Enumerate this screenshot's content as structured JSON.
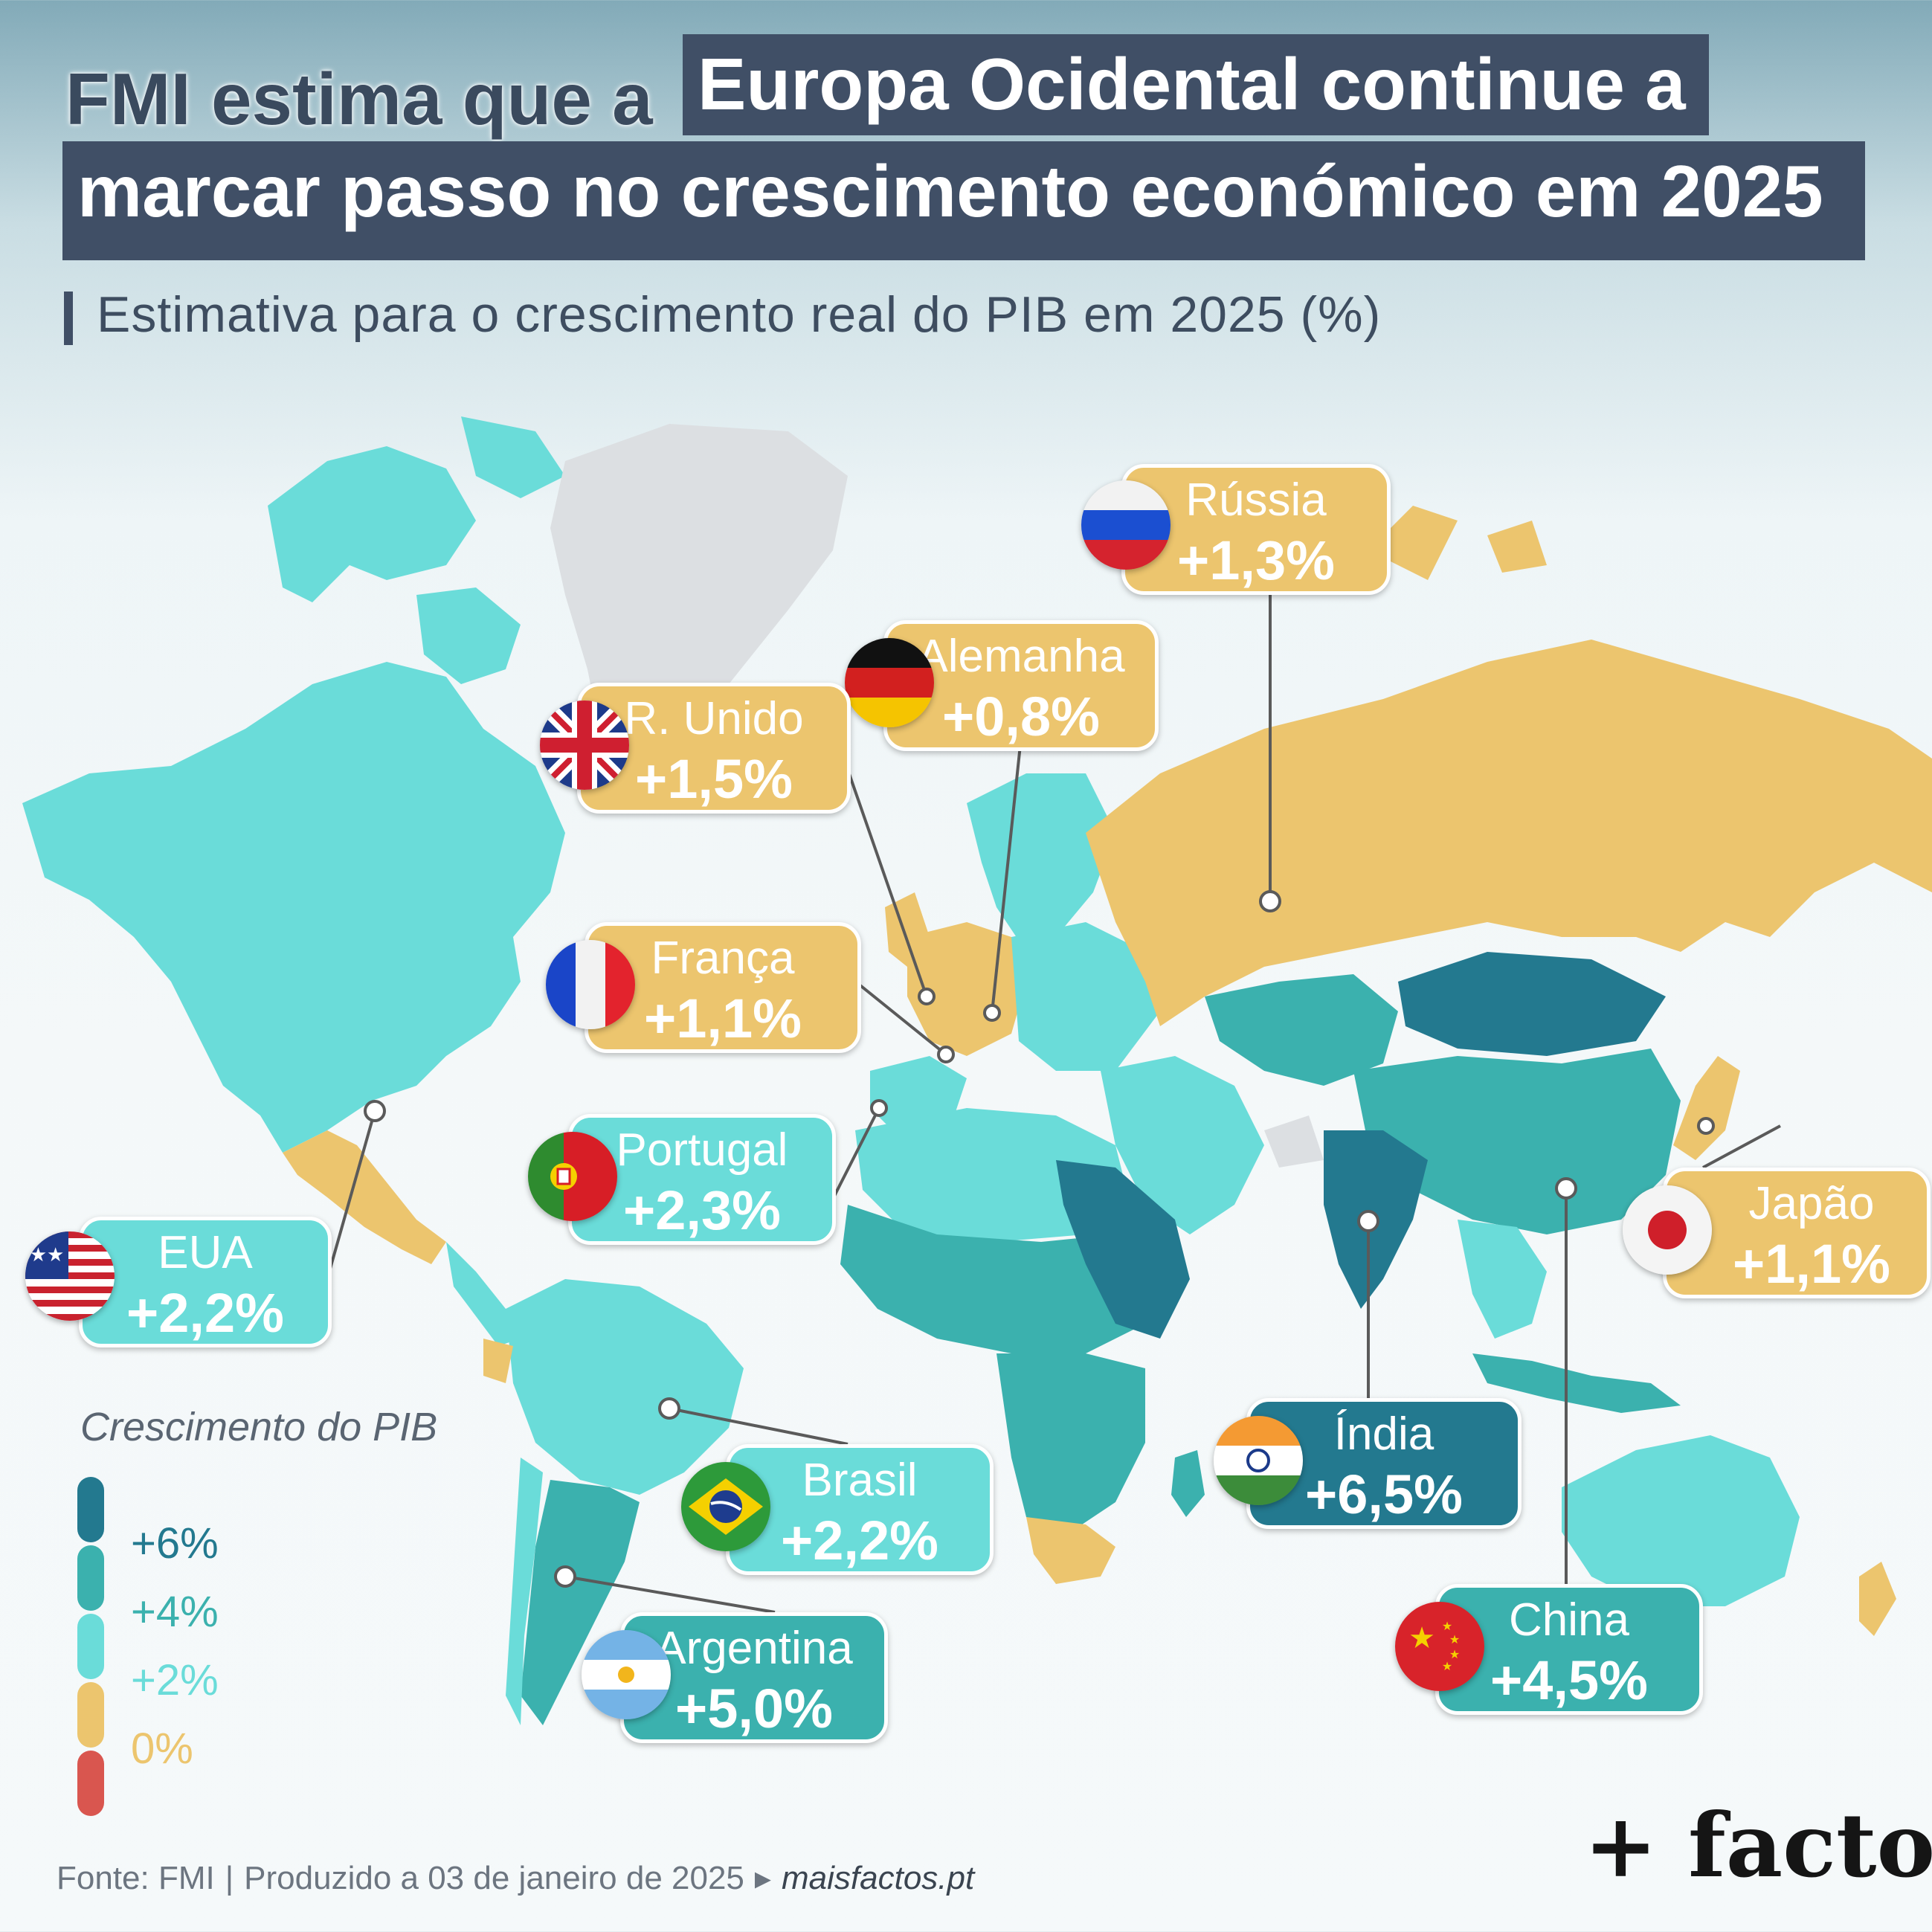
{
  "title": {
    "part1": "FMI estima que a",
    "part2": "Europa Ocidental continue a",
    "part3": "marcar passo no crescimento económico em 2025"
  },
  "subtitle": "Estimativa para o crescimento real do PIB em 2025 (%)",
  "colors": {
    "dark": "#23798f",
    "mid": "#3bb1ae",
    "light": "#6adcd9",
    "gold": "#ecc56e",
    "red": "#d9564f",
    "no_data": "#dcdfe2",
    "title_bg": "#404f66"
  },
  "callouts": [
    {
      "id": "russia",
      "name": "Rússia",
      "value": "+1,3%",
      "flag": "russia-flag-icon",
      "tier": "gold"
    },
    {
      "id": "alemanha",
      "name": "Alemanha",
      "value": "+0,8%",
      "flag": "germany-flag-icon",
      "tier": "gold"
    },
    {
      "id": "reino-unido",
      "name": "R. Unido",
      "value": "+1,5%",
      "flag": "uk-flag-icon",
      "tier": "gold"
    },
    {
      "id": "franca",
      "name": "França",
      "value": "+1,1%",
      "flag": "france-flag-icon",
      "tier": "gold"
    },
    {
      "id": "portugal",
      "name": "Portugal",
      "value": "+2,3%",
      "flag": "portugal-flag-icon",
      "tier": "light"
    },
    {
      "id": "eua",
      "name": "EUA",
      "value": "+2,2%",
      "flag": "usa-flag-icon",
      "tier": "light"
    },
    {
      "id": "japao",
      "name": "Japão",
      "value": "+1,1%",
      "flag": "japan-flag-icon",
      "tier": "gold"
    },
    {
      "id": "india",
      "name": "Índia",
      "value": "+6,5%",
      "flag": "india-flag-icon",
      "tier": "dark"
    },
    {
      "id": "brasil",
      "name": "Brasil",
      "value": "+2,2%",
      "flag": "brazil-flag-icon",
      "tier": "light"
    },
    {
      "id": "argentina",
      "name": "Argentina",
      "value": "+5,0%",
      "flag": "argentina-flag-icon",
      "tier": "mid"
    },
    {
      "id": "china",
      "name": "China",
      "value": "+4,5%",
      "flag": "china-flag-icon",
      "tier": "mid"
    }
  ],
  "legend": {
    "title": "Crescimento do PIB",
    "labels": [
      "+6%",
      "+4%",
      "+2%",
      "0%"
    ]
  },
  "footer": {
    "source": "Fonte: FMI",
    "produced": "Produzido a 03 de janeiro de 2025",
    "site": "maisfactos.pt"
  },
  "brand": "+ factos"
}
